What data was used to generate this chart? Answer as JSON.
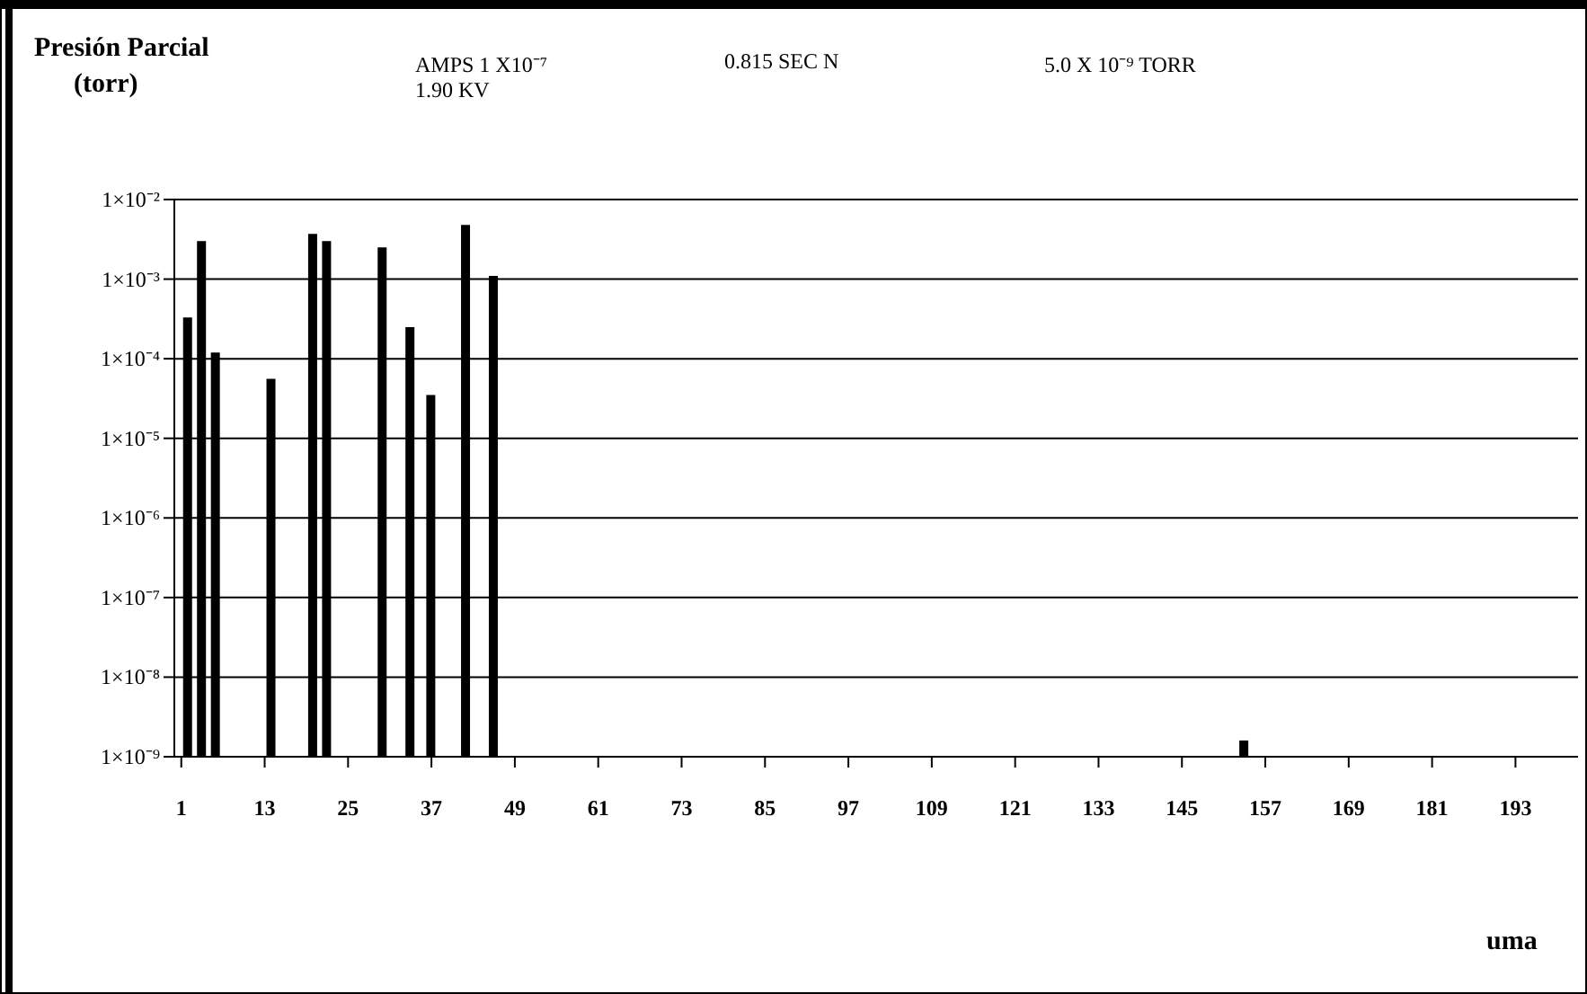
{
  "chart_data": {
    "type": "bar",
    "title": "Presión Parcial",
    "ylabel": "(torr)",
    "xlabel": "uma",
    "annotations": [
      "AMPS 1 X10⁻⁷",
      "1.90 KV",
      "0.815 SEC N",
      "5.0 X 10⁻⁹ TORR"
    ],
    "x": [
      2,
      4,
      6,
      14,
      20,
      22,
      30,
      34,
      37,
      42,
      46,
      154
    ],
    "values": [
      0.00033,
      0.003,
      0.00012,
      5.6e-05,
      0.0037,
      0.003,
      0.0025,
      0.00025,
      3.5e-05,
      0.0048,
      0.0011,
      1.6e-09
    ],
    "color": "#000000",
    "log": true,
    "xlim": [
      0,
      202
    ],
    "xticks": [
      1,
      13,
      25,
      37,
      49,
      61,
      73,
      85,
      97,
      109,
      121,
      133,
      145,
      157,
      169,
      181,
      193
    ],
    "ylim": [
      1e-09,
      0.01
    ],
    "yticks": [
      {
        "value": 1e-09,
        "label": "1×10⁻⁹"
      },
      {
        "value": 1e-08,
        "label": "1×10⁻⁸"
      },
      {
        "value": 1e-07,
        "label": "1×10⁻⁷"
      },
      {
        "value": 1e-06,
        "label": "1×10⁻⁶"
      },
      {
        "value": 1e-05,
        "label": "1×10⁻⁵"
      },
      {
        "value": 0.0001,
        "label": "1×10⁻⁴"
      },
      {
        "value": 0.001,
        "label": "1×10⁻³"
      },
      {
        "value": 0.01,
        "label": "1×10⁻²"
      }
    ],
    "grid": "y",
    "legend": false
  }
}
